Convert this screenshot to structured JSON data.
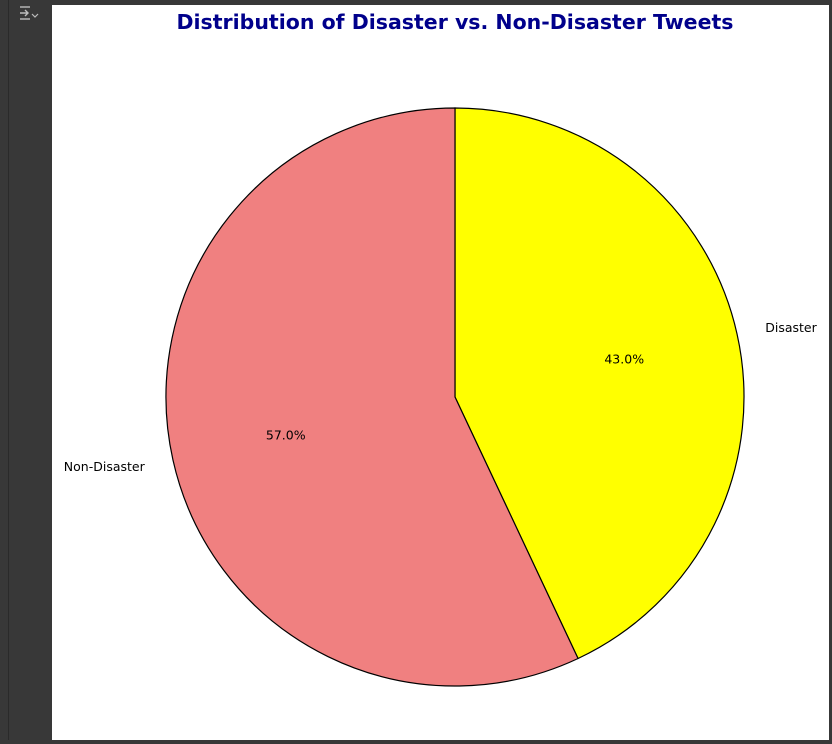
{
  "output_toggle": {
    "icon": "output-collapse-icon"
  },
  "chart_data": {
    "type": "pie",
    "title": "Distribution of Disaster vs. Non-Disaster Tweets",
    "title_color": "#00008b",
    "slices": [
      {
        "label": "Disaster",
        "value": 43.0,
        "pct_label": "43.0%",
        "color": "#ffff00"
      },
      {
        "label": "Non-Disaster",
        "value": 57.0,
        "pct_label": "57.0%",
        "color": "#f08080"
      }
    ],
    "start_angle_deg": 90,
    "direction": "clockwise",
    "edge_color": "#000000"
  }
}
